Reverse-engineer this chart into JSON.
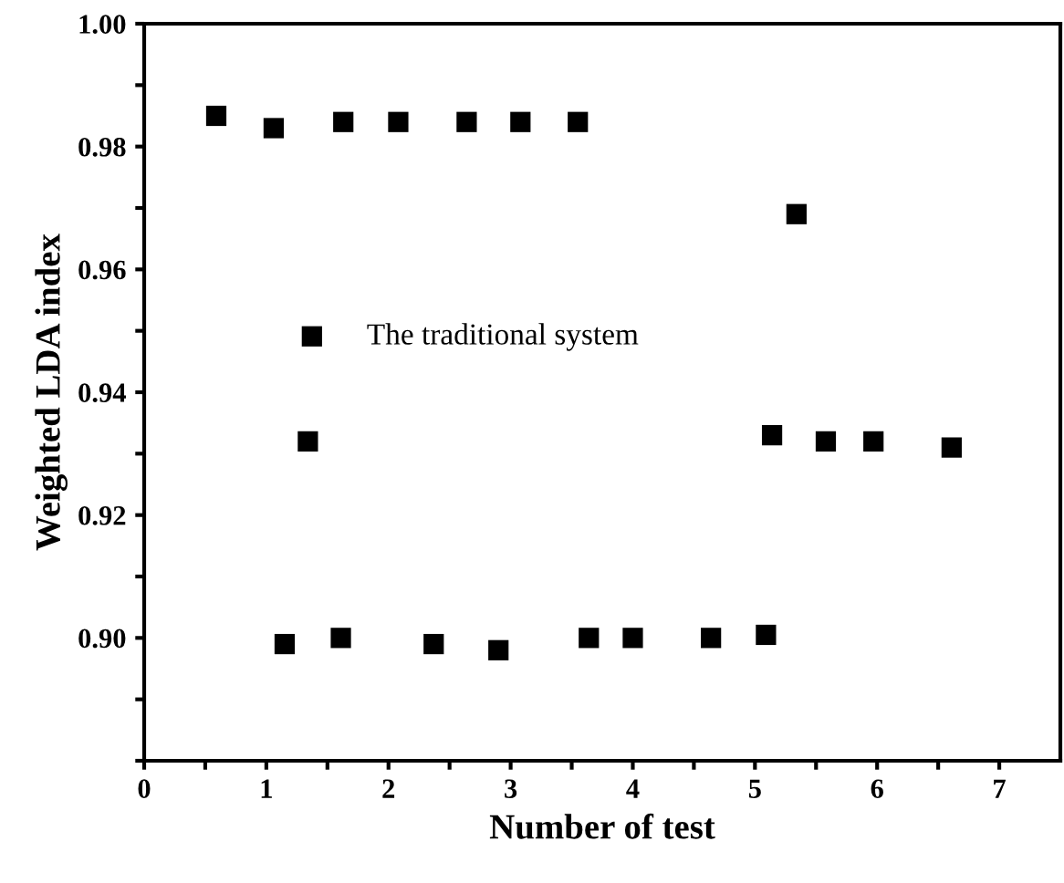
{
  "chart_data": {
    "type": "scatter",
    "xlabel": "Number of test",
    "ylabel": "Weighted LDA index",
    "x": [
      0.59,
      1.06,
      1.63,
      2.08,
      2.64,
      3.08,
      3.55,
      5.34,
      1.34,
      5.14,
      5.58,
      5.97,
      6.61,
      1.15,
      1.61,
      2.37,
      2.9,
      3.64,
      4.0,
      4.64,
      5.09
    ],
    "series": [
      {
        "name": "The traditional system",
        "color": "#000000",
        "values": [
          0.985,
          0.983,
          0.984,
          0.984,
          0.984,
          0.984,
          0.984,
          0.969,
          0.932,
          0.933,
          0.932,
          0.932,
          0.931,
          0.899,
          0.9,
          0.899,
          0.898,
          0.9,
          0.9,
          0.9,
          0.9005
        ]
      }
    ],
    "marker": "square",
    "legend": "left",
    "xlim": [
      0,
      7.5
    ],
    "xticks": [
      0,
      {
        "value": 0.5,
        "label": null
      },
      1,
      {
        "value": 1.5,
        "label": null
      },
      2,
      {
        "value": 2.5,
        "label": null
      },
      3,
      {
        "value": 3.5,
        "label": null
      },
      4,
      {
        "value": 4.5,
        "label": null
      },
      5,
      {
        "value": 5.5,
        "label": null
      },
      6,
      {
        "value": 6.5,
        "label": null
      },
      7
    ],
    "ylim": [
      0.88,
      1.0
    ],
    "yticks": [
      {
        "value": 0.88,
        "label": null
      },
      {
        "value": 0.89,
        "label": null
      },
      {
        "value": 0.9,
        "label": "0.90"
      },
      {
        "value": 0.91,
        "label": null
      },
      {
        "value": 0.92,
        "label": "0.92"
      },
      {
        "value": 0.93,
        "label": null
      },
      {
        "value": 0.94,
        "label": "0.94"
      },
      {
        "value": 0.95,
        "label": null
      },
      {
        "value": 0.96,
        "label": "0.96"
      },
      {
        "value": 0.97,
        "label": null
      },
      {
        "value": 0.98,
        "label": "0.98"
      },
      {
        "value": 0.99,
        "label": null
      },
      {
        "value": 1.0,
        "label": "1.00"
      }
    ]
  }
}
